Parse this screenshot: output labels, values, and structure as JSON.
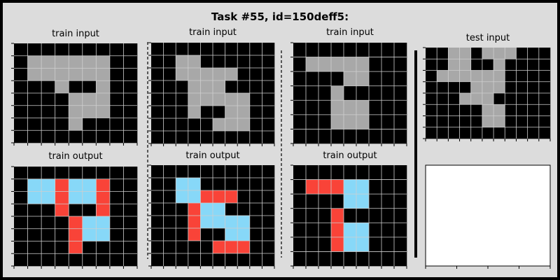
{
  "title": "Task #55, id=150deff5:",
  "colors": {
    "0": "#000000",
    "5": "#a8a8a8",
    "8": "#87d8f8",
    "2": "#f94338",
    "grid_line": "#cfcfcf",
    "background": "#dcdcdc"
  },
  "panels": [
    {
      "label": "train input",
      "grid": [
        [
          0,
          0,
          0,
          0,
          0,
          0,
          0,
          0,
          0
        ],
        [
          0,
          5,
          5,
          5,
          5,
          5,
          5,
          0,
          0
        ],
        [
          0,
          5,
          5,
          5,
          5,
          5,
          5,
          0,
          0
        ],
        [
          0,
          0,
          0,
          5,
          0,
          0,
          5,
          0,
          0
        ],
        [
          0,
          0,
          0,
          0,
          5,
          5,
          5,
          0,
          0
        ],
        [
          0,
          0,
          0,
          0,
          5,
          5,
          5,
          0,
          0
        ],
        [
          0,
          0,
          0,
          0,
          5,
          0,
          0,
          0,
          0
        ],
        [
          0,
          0,
          0,
          0,
          0,
          0,
          0,
          0,
          0
        ]
      ]
    },
    {
      "label": "train output",
      "grid": [
        [
          0,
          0,
          0,
          0,
          0,
          0,
          0,
          0,
          0
        ],
        [
          0,
          8,
          8,
          2,
          8,
          8,
          2,
          0,
          0
        ],
        [
          0,
          8,
          8,
          2,
          8,
          8,
          2,
          0,
          0
        ],
        [
          0,
          0,
          0,
          2,
          0,
          0,
          2,
          0,
          0
        ],
        [
          0,
          0,
          0,
          0,
          2,
          8,
          8,
          0,
          0
        ],
        [
          0,
          0,
          0,
          0,
          2,
          8,
          8,
          0,
          0
        ],
        [
          0,
          0,
          0,
          0,
          2,
          0,
          0,
          0,
          0
        ],
        [
          0,
          0,
          0,
          0,
          0,
          0,
          0,
          0,
          0
        ]
      ]
    },
    {
      "label": "train input",
      "grid": [
        [
          0,
          0,
          0,
          0,
          0,
          0,
          0,
          0,
          0,
          0
        ],
        [
          0,
          0,
          5,
          5,
          0,
          0,
          0,
          0,
          0,
          0
        ],
        [
          0,
          0,
          5,
          5,
          5,
          5,
          5,
          0,
          0,
          0
        ],
        [
          0,
          0,
          0,
          5,
          5,
          5,
          0,
          0,
          0,
          0
        ],
        [
          0,
          0,
          0,
          5,
          5,
          5,
          5,
          5,
          0,
          0
        ],
        [
          0,
          0,
          0,
          5,
          0,
          0,
          5,
          5,
          0,
          0
        ],
        [
          0,
          0,
          0,
          0,
          0,
          5,
          5,
          5,
          0,
          0
        ],
        [
          0,
          0,
          0,
          0,
          0,
          0,
          0,
          0,
          0,
          0
        ]
      ]
    },
    {
      "label": "train output",
      "grid": [
        [
          0,
          0,
          0,
          0,
          0,
          0,
          0,
          0,
          0,
          0
        ],
        [
          0,
          0,
          8,
          8,
          0,
          0,
          0,
          0,
          0,
          0
        ],
        [
          0,
          0,
          8,
          8,
          2,
          2,
          2,
          0,
          0,
          0
        ],
        [
          0,
          0,
          0,
          2,
          8,
          8,
          0,
          0,
          0,
          0
        ],
        [
          0,
          0,
          0,
          2,
          8,
          8,
          8,
          8,
          0,
          0
        ],
        [
          0,
          0,
          0,
          2,
          0,
          0,
          8,
          8,
          0,
          0
        ],
        [
          0,
          0,
          0,
          0,
          0,
          2,
          2,
          2,
          0,
          0
        ],
        [
          0,
          0,
          0,
          0,
          0,
          0,
          0,
          0,
          0,
          0
        ]
      ]
    },
    {
      "label": "train input",
      "grid": [
        [
          0,
          0,
          0,
          0,
          0,
          0,
          0,
          0,
          0
        ],
        [
          0,
          5,
          5,
          5,
          5,
          5,
          0,
          0,
          0
        ],
        [
          0,
          0,
          0,
          0,
          5,
          5,
          0,
          0,
          0
        ],
        [
          0,
          0,
          0,
          5,
          0,
          0,
          0,
          0,
          0
        ],
        [
          0,
          0,
          0,
          5,
          5,
          5,
          0,
          0,
          0
        ],
        [
          0,
          0,
          0,
          5,
          5,
          5,
          0,
          0,
          0
        ],
        [
          0,
          0,
          0,
          0,
          0,
          0,
          0,
          0,
          0
        ]
      ]
    },
    {
      "label": "train output",
      "grid": [
        [
          0,
          0,
          0,
          0,
          0,
          0,
          0,
          0,
          0
        ],
        [
          0,
          2,
          2,
          2,
          8,
          8,
          0,
          0,
          0
        ],
        [
          0,
          0,
          0,
          0,
          8,
          8,
          0,
          0,
          0
        ],
        [
          0,
          0,
          0,
          2,
          0,
          0,
          0,
          0,
          0
        ],
        [
          0,
          0,
          0,
          2,
          8,
          8,
          0,
          0,
          0
        ],
        [
          0,
          0,
          0,
          2,
          8,
          8,
          0,
          0,
          0
        ],
        [
          0,
          0,
          0,
          0,
          0,
          0,
          0,
          0,
          0
        ]
      ]
    },
    {
      "label": "test input",
      "grid": [
        [
          0,
          0,
          5,
          5,
          0,
          5,
          5,
          5,
          0,
          0,
          0
        ],
        [
          0,
          0,
          5,
          5,
          0,
          0,
          5,
          0,
          0,
          0,
          0
        ],
        [
          0,
          5,
          5,
          5,
          5,
          5,
          5,
          0,
          0,
          0,
          0
        ],
        [
          0,
          0,
          0,
          0,
          5,
          5,
          5,
          0,
          0,
          0,
          0
        ],
        [
          0,
          0,
          0,
          5,
          5,
          5,
          0,
          0,
          0,
          0,
          0
        ],
        [
          0,
          0,
          0,
          0,
          0,
          5,
          5,
          0,
          0,
          0,
          0
        ],
        [
          0,
          0,
          0,
          0,
          0,
          5,
          5,
          0,
          0,
          0,
          0
        ],
        [
          0,
          0,
          0,
          0,
          0,
          0,
          0,
          0,
          0,
          0,
          0
        ]
      ]
    },
    {
      "label": "",
      "grid": []
    }
  ]
}
